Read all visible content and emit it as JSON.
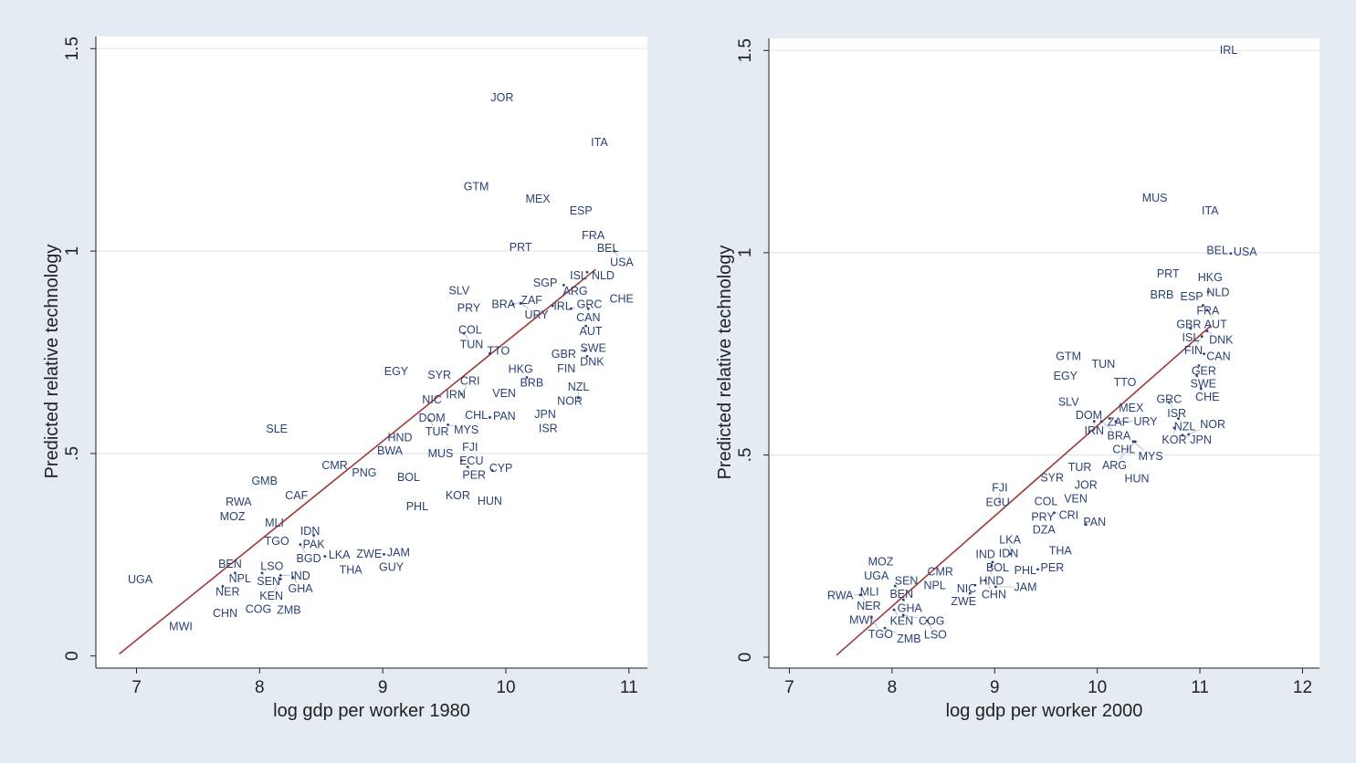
{
  "colors": {
    "background": "#e4ebf2",
    "plot": "#ffffff",
    "label": "#2a4272",
    "fit": "#a03a3a",
    "grid": "#e2e8ef",
    "axis": "#222222"
  },
  "chart_data": [
    {
      "type": "scatter",
      "xlabel": "log gdp per worker 1980",
      "ylabel": "Predicted relative technology",
      "xlim": [
        6.67,
        11.15
      ],
      "ylim": [
        -0.03,
        1.53
      ],
      "xticks": [
        7,
        8,
        9,
        10,
        11
      ],
      "yticks": [
        {
          "v": 0,
          "label": "0"
        },
        {
          "v": 0.5,
          "label": ".5"
        },
        {
          "v": 1,
          "label": "1"
        },
        {
          "v": 1.5,
          "label": "1.5"
        }
      ],
      "grid": true,
      "fit_line": {
        "x": [
          6.86,
          10.73
        ],
        "y": [
          0.005,
          0.955
        ]
      },
      "points": [
        {
          "label": "JOR",
          "x": 9.97,
          "y": 1.38
        },
        {
          "label": "ITA",
          "x": 10.76,
          "y": 1.27
        },
        {
          "label": "GTM",
          "x": 9.76,
          "y": 1.16
        },
        {
          "label": "MEX",
          "x": 10.26,
          "y": 1.13
        },
        {
          "label": "ESP",
          "x": 10.61,
          "y": 1.1
        },
        {
          "label": "FRA",
          "x": 10.71,
          "y": 1.04
        },
        {
          "label": "PRT",
          "x": 10.12,
          "y": 1.01
        },
        {
          "label": "BEL",
          "x": 10.79,
          "y": 1.01
        },
        {
          "label": "USA",
          "x": 10.88,
          "y": 1.0
        },
        {
          "label": "NLD",
          "x": 10.79,
          "y": 0.955
        },
        {
          "label": "ISL",
          "x": 10.66,
          "y": 0.948
        },
        {
          "label": "SGP",
          "x": 10.32,
          "y": 0.923
        },
        {
          "label": "ARG",
          "x": 10.47,
          "y": 0.916
        },
        {
          "label": "SLV",
          "x": 9.62,
          "y": 0.903
        },
        {
          "label": "CHE",
          "x": 10.94,
          "y": 0.883
        },
        {
          "label": "BRA",
          "x": 9.98,
          "y": 0.869
        },
        {
          "label": "ZAF",
          "x": 10.06,
          "y": 0.869
        },
        {
          "label": "URY",
          "x": 10.12,
          "y": 0.871
        },
        {
          "label": "IRL",
          "x": 10.38,
          "y": 0.865
        },
        {
          "label": "GRC",
          "x": 10.53,
          "y": 0.858
        },
        {
          "label": "CAN",
          "x": 10.67,
          "y": 0.858
        },
        {
          "label": "PRY",
          "x": 9.7,
          "y": 0.86
        },
        {
          "label": "AUT",
          "x": 10.65,
          "y": 0.815
        },
        {
          "label": "COL",
          "x": 9.71,
          "y": 0.806
        },
        {
          "label": "TUN",
          "x": 9.66,
          "y": 0.797
        },
        {
          "label": "TTO",
          "x": 9.87,
          "y": 0.747
        },
        {
          "label": "GBR",
          "x": 10.47,
          "y": 0.747
        },
        {
          "label": "SWE",
          "x": 10.64,
          "y": 0.754
        },
        {
          "label": "DNK",
          "x": 10.66,
          "y": 0.74
        },
        {
          "label": "FIN",
          "x": 10.53,
          "y": 0.713
        },
        {
          "label": "HKG",
          "x": 10.12,
          "y": 0.709
        },
        {
          "label": "BRB",
          "x": 10.17,
          "y": 0.688
        },
        {
          "label": "EGY",
          "x": 9.11,
          "y": 0.704
        },
        {
          "label": "SYR",
          "x": 9.46,
          "y": 0.695
        },
        {
          "label": "VEN",
          "x": 10.01,
          "y": 0.655
        },
        {
          "label": "NIC",
          "x": 9.4,
          "y": 0.634
        },
        {
          "label": "IRN",
          "x": 9.57,
          "y": 0.641
        },
        {
          "label": "CRI",
          "x": 9.64,
          "y": 0.646
        },
        {
          "label": "NOR",
          "x": 10.52,
          "y": 0.63
        },
        {
          "label": "NZL",
          "x": 10.59,
          "y": 0.637
        },
        {
          "label": "JPN",
          "x": 10.32,
          "y": 0.598
        },
        {
          "label": "ISR",
          "x": 10.32,
          "y": 0.569
        },
        {
          "label": "CHL",
          "x": 9.76,
          "y": 0.596
        },
        {
          "label": "PAN",
          "x": 9.87,
          "y": 0.589
        },
        {
          "label": "DOM",
          "x": 9.4,
          "y": 0.589
        },
        {
          "label": "TUR",
          "x": 9.38,
          "y": 0.582
        },
        {
          "label": "MYS",
          "x": 9.53,
          "y": 0.571
        },
        {
          "label": "SLE",
          "x": 8.14,
          "y": 0.562
        },
        {
          "label": "HND",
          "x": 9.14,
          "y": 0.54
        },
        {
          "label": "FJI",
          "x": 9.71,
          "y": 0.517
        },
        {
          "label": "BWA",
          "x": 9.02,
          "y": 0.51
        },
        {
          "label": "MUS",
          "x": 9.47,
          "y": 0.501
        },
        {
          "label": "ECU",
          "x": 9.64,
          "y": 0.483
        },
        {
          "label": "PER",
          "x": 9.69,
          "y": 0.467
        },
        {
          "label": "CYP",
          "x": 9.89,
          "y": 0.458
        },
        {
          "label": "CMR",
          "x": 8.61,
          "y": 0.472
        },
        {
          "label": "PNG",
          "x": 8.85,
          "y": 0.454
        },
        {
          "label": "BOL",
          "x": 9.21,
          "y": 0.442
        },
        {
          "label": "GMB",
          "x": 8.04,
          "y": 0.433
        },
        {
          "label": "CAF",
          "x": 8.3,
          "y": 0.397
        },
        {
          "label": "KOR",
          "x": 9.61,
          "y": 0.397
        },
        {
          "label": "HUN",
          "x": 9.87,
          "y": 0.384
        },
        {
          "label": "RWA",
          "x": 7.83,
          "y": 0.381
        },
        {
          "label": "PHL",
          "x": 9.28,
          "y": 0.37
        },
        {
          "label": "MOZ",
          "x": 7.78,
          "y": 0.345
        },
        {
          "label": "MLI",
          "x": 8.12,
          "y": 0.33
        },
        {
          "label": "IDN",
          "x": 8.41,
          "y": 0.309
        },
        {
          "label": "PAK",
          "x": 8.44,
          "y": 0.298
        },
        {
          "label": "TGO",
          "x": 8.14,
          "y": 0.284
        },
        {
          "label": "BGD",
          "x": 8.33,
          "y": 0.275
        },
        {
          "label": "LKA",
          "x": 8.53,
          "y": 0.246
        },
        {
          "label": "ZWE",
          "x": 8.89,
          "y": 0.253
        },
        {
          "label": "JAM",
          "x": 9.01,
          "y": 0.251
        },
        {
          "label": "GUY",
          "x": 9.07,
          "y": 0.235
        },
        {
          "label": "THA",
          "x": 8.74,
          "y": 0.214
        },
        {
          "label": "BEN",
          "x": 7.76,
          "y": 0.228
        },
        {
          "label": "LSO",
          "x": 8.1,
          "y": 0.223
        },
        {
          "label": "NPL",
          "x": 7.8,
          "y": 0.205
        },
        {
          "label": "SEN",
          "x": 8.02,
          "y": 0.205
        },
        {
          "label": "IND",
          "x": 8.17,
          "y": 0.199
        },
        {
          "label": "GHA",
          "x": 8.27,
          "y": 0.194
        },
        {
          "label": "KEN",
          "x": 8.17,
          "y": 0.19
        },
        {
          "label": "UGA",
          "x": 7.03,
          "y": 0.19
        },
        {
          "label": "NER",
          "x": 7.7,
          "y": 0.172
        },
        {
          "label": "CHN",
          "x": 7.72,
          "y": 0.106
        },
        {
          "label": "COG",
          "x": 7.99,
          "y": 0.117
        },
        {
          "label": "ZMB",
          "x": 8.2,
          "y": 0.117
        },
        {
          "label": "MWI",
          "x": 7.36,
          "y": 0.074
        }
      ]
    },
    {
      "type": "scatter",
      "xlabel": "log gdp per worker 2000",
      "ylabel": "Predicted relative technology",
      "xlim": [
        6.8,
        12.165
      ],
      "ylim": [
        -0.027,
        1.53
      ],
      "xticks": [
        7,
        8,
        9,
        10,
        11,
        12
      ],
      "yticks": [
        {
          "v": 0,
          "label": "0"
        },
        {
          "v": 0.5,
          "label": ".5"
        },
        {
          "v": 1,
          "label": "1"
        },
        {
          "v": 1.5,
          "label": "1.5"
        }
      ],
      "grid": true,
      "fit_line": {
        "x": [
          7.46,
          11.11
        ],
        "y": [
          0.005,
          0.82
        ]
      },
      "points": [
        {
          "label": "IRL",
          "x": 11.28,
          "y": 1.502
        },
        {
          "label": "MUS",
          "x": 10.56,
          "y": 1.136
        },
        {
          "label": "ITA",
          "x": 11.1,
          "y": 1.105
        },
        {
          "label": "BEL",
          "x": 11.17,
          "y": 1.007
        },
        {
          "label": "USA",
          "x": 11.3,
          "y": 0.998
        },
        {
          "label": "PRT",
          "x": 10.69,
          "y": 0.949
        },
        {
          "label": "HKG",
          "x": 11.1,
          "y": 0.94
        },
        {
          "label": "BRB",
          "x": 10.63,
          "y": 0.897
        },
        {
          "label": "ESP",
          "x": 10.92,
          "y": 0.892
        },
        {
          "label": "NLD",
          "x": 11.08,
          "y": 0.903
        },
        {
          "label": "FRA",
          "x": 11.03,
          "y": 0.87
        },
        {
          "label": "AUT",
          "x": 11.07,
          "y": 0.858
        },
        {
          "label": "GBR",
          "x": 10.92,
          "y": 0.829
        },
        {
          "label": "ISL",
          "x": 10.91,
          "y": 0.813
        },
        {
          "label": "DNK",
          "x": 11.07,
          "y": 0.806
        },
        {
          "label": "FIN",
          "x": 11.02,
          "y": 0.793
        },
        {
          "label": "CAN",
          "x": 11.04,
          "y": 0.75
        },
        {
          "label": "GER",
          "x": 10.99,
          "y": 0.721
        },
        {
          "label": "SWE",
          "x": 10.97,
          "y": 0.696
        },
        {
          "label": "CHE",
          "x": 11.01,
          "y": 0.664
        },
        {
          "label": "GTM",
          "x": 9.72,
          "y": 0.745
        },
        {
          "label": "TUN",
          "x": 10.06,
          "y": 0.725
        },
        {
          "label": "EGY",
          "x": 9.69,
          "y": 0.696
        },
        {
          "label": "TTO",
          "x": 10.27,
          "y": 0.68
        },
        {
          "label": "SLV",
          "x": 9.72,
          "y": 0.632
        },
        {
          "label": "GRC",
          "x": 10.7,
          "y": 0.639
        },
        {
          "label": "ISR",
          "x": 10.7,
          "y": 0.63
        },
        {
          "label": "MEX",
          "x": 10.33,
          "y": 0.617
        },
        {
          "label": "DOM",
          "x": 9.89,
          "y": 0.605
        },
        {
          "label": "ZAF",
          "x": 10.12,
          "y": 0.59
        },
        {
          "label": "IRN",
          "x": 9.97,
          "y": 0.583
        },
        {
          "label": "BRA",
          "x": 10.04,
          "y": 0.583
        },
        {
          "label": "URY",
          "x": 10.18,
          "y": 0.583
        },
        {
          "label": "NZL",
          "x": 10.79,
          "y": 0.59
        },
        {
          "label": "KOR",
          "x": 10.75,
          "y": 0.567
        },
        {
          "label": "JPN",
          "x": 10.83,
          "y": 0.549
        },
        {
          "label": "NOR",
          "x": 10.89,
          "y": 0.551
        },
        {
          "label": "CHL",
          "x": 10.26,
          "y": 0.529
        },
        {
          "label": "MYS",
          "x": 10.35,
          "y": 0.533
        },
        {
          "label": "ARG",
          "x": 10.37,
          "y": 0.533
        },
        {
          "label": "TUR",
          "x": 9.83,
          "y": 0.47
        },
        {
          "label": "HUN",
          "x": 10.34,
          "y": 0.445
        },
        {
          "label": "SYR",
          "x": 9.56,
          "y": 0.445
        },
        {
          "label": "JOR",
          "x": 9.89,
          "y": 0.427
        },
        {
          "label": "VEN",
          "x": 9.79,
          "y": 0.393
        },
        {
          "label": "COL",
          "x": 9.5,
          "y": 0.386
        },
        {
          "label": "ECU",
          "x": 9.03,
          "y": 0.384
        },
        {
          "label": "FJI",
          "x": 9.05,
          "y": 0.384
        },
        {
          "label": "PRY",
          "x": 9.47,
          "y": 0.348
        },
        {
          "label": "CRI",
          "x": 9.58,
          "y": 0.357
        },
        {
          "label": "DZA",
          "x": 9.48,
          "y": 0.33
        },
        {
          "label": "PAN",
          "x": 9.89,
          "y": 0.328
        },
        {
          "label": "THA",
          "x": 9.64,
          "y": 0.264
        },
        {
          "label": "IND",
          "x": 8.91,
          "y": 0.255
        },
        {
          "label": "IDN",
          "x": 9.09,
          "y": 0.255
        },
        {
          "label": "LKA",
          "x": 9.15,
          "y": 0.255
        },
        {
          "label": "BOL",
          "x": 8.98,
          "y": 0.235
        },
        {
          "label": "HND",
          "x": 8.97,
          "y": 0.226
        },
        {
          "label": "PHL",
          "x": 9.27,
          "y": 0.21
        },
        {
          "label": "PER",
          "x": 9.42,
          "y": 0.217
        },
        {
          "label": "CMR",
          "x": 8.47,
          "y": 0.212
        },
        {
          "label": "MOZ",
          "x": 7.89,
          "y": 0.237
        },
        {
          "label": "UGA",
          "x": 7.82,
          "y": 0.208
        },
        {
          "label": "SEN",
          "x": 8.14,
          "y": 0.19
        },
        {
          "label": "NPL",
          "x": 8.37,
          "y": 0.181
        },
        {
          "label": "BEN",
          "x": 8.03,
          "y": 0.176
        },
        {
          "label": "MLI",
          "x": 7.78,
          "y": 0.163
        },
        {
          "label": "NER",
          "x": 7.7,
          "y": 0.154
        },
        {
          "label": "RWA",
          "x": 7.69,
          "y": 0.154
        },
        {
          "label": "CHN",
          "x": 8.91,
          "y": 0.19
        },
        {
          "label": "NIC",
          "x": 8.81,
          "y": 0.178
        },
        {
          "label": "JAM",
          "x": 9.01,
          "y": 0.174
        },
        {
          "label": "ZWE",
          "x": 8.76,
          "y": 0.158
        },
        {
          "label": "GHA",
          "x": 8.11,
          "y": 0.142
        },
        {
          "label": "KEN",
          "x": 8.02,
          "y": 0.117
        },
        {
          "label": "MWI",
          "x": 7.67,
          "y": 0.099
        },
        {
          "label": "TGO",
          "x": 7.8,
          "y": 0.099
        },
        {
          "label": "COG",
          "x": 8.11,
          "y": 0.104
        },
        {
          "label": "LSO",
          "x": 8.34,
          "y": 0.09
        },
        {
          "label": "ZMB",
          "x": 7.93,
          "y": 0.072
        }
      ]
    }
  ]
}
